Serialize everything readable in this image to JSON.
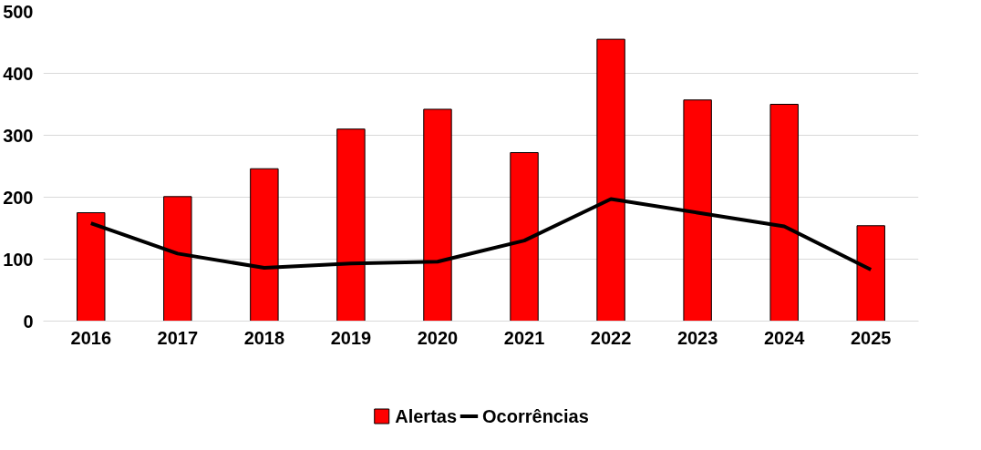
{
  "chart_data": {
    "type": "bar",
    "categories": [
      "2016",
      "2017",
      "2018",
      "2019",
      "2020",
      "2021",
      "2022",
      "2023",
      "2024",
      "2025"
    ],
    "series": [
      {
        "name": "Alertas",
        "color": "#ff0000",
        "values": [
          175,
          201,
          246,
          310,
          342,
          272,
          455,
          357,
          350,
          154
        ]
      },
      {
        "name": "Ocorrências",
        "type": "line",
        "color": "#000000",
        "values": [
          158,
          109,
          86,
          93,
          96,
          130,
          197,
          175,
          153,
          83
        ]
      }
    ],
    "ylim": [
      0,
      500
    ],
    "yticks": [
      0,
      100,
      200,
      300,
      400,
      500
    ],
    "grid": "y",
    "legend": "bottom",
    "line_style": "solid",
    "marker": "none"
  }
}
